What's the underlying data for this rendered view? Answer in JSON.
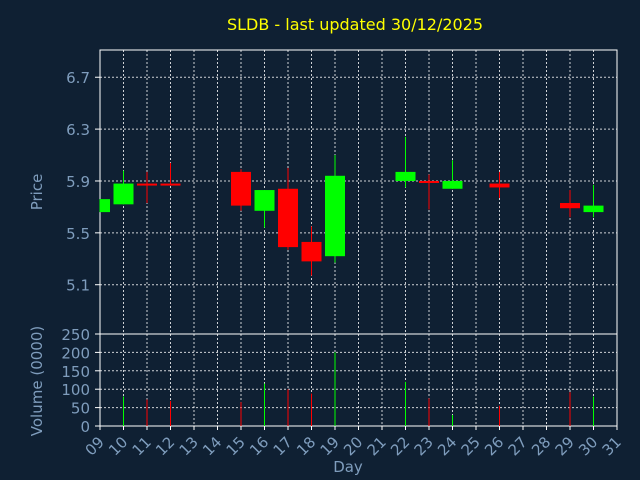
{
  "chart_data": {
    "type": "candlestick",
    "title": "SLDB - last updated 30/12/2025",
    "xlabel": "Day",
    "ylabel_price": "Price",
    "ylabel_volume": "Volume (0000)",
    "x_ticks": [
      "09",
      "10",
      "11",
      "12",
      "13",
      "14",
      "15",
      "16",
      "17",
      "18",
      "19",
      "20",
      "21",
      "22",
      "23",
      "24",
      "25",
      "26",
      "27",
      "28",
      "29",
      "30",
      "31"
    ],
    "price_ticks": [
      "5.1",
      "5.5",
      "5.9",
      "6.3",
      "6.7"
    ],
    "price_ylim": [
      4.72,
      6.91
    ],
    "volume_ticks": [
      "0",
      "50",
      "100",
      "150",
      "200",
      "250"
    ],
    "volume_ylim": [
      0,
      250
    ],
    "grid": true,
    "candles": [
      {
        "day": 9,
        "open": 5.66,
        "close": 5.76,
        "high": 5.76,
        "low": 5.66,
        "volume": 0
      },
      {
        "day": 10,
        "open": 5.72,
        "close": 5.88,
        "high": 5.98,
        "low": 5.72,
        "volume": 80
      },
      {
        "day": 11,
        "open": 5.88,
        "close": 5.87,
        "high": 5.97,
        "low": 5.73,
        "volume": 72
      },
      {
        "day": 12,
        "open": 5.88,
        "close": 5.87,
        "high": 6.04,
        "low": 5.87,
        "volume": 68
      },
      {
        "day": 15,
        "open": 5.97,
        "close": 5.71,
        "high": 5.99,
        "low": 5.67,
        "volume": 65
      },
      {
        "day": 16,
        "open": 5.67,
        "close": 5.83,
        "high": 5.83,
        "low": 5.54,
        "volume": 115
      },
      {
        "day": 17,
        "open": 5.84,
        "close": 5.39,
        "high": 6.0,
        "low": 5.37,
        "volume": 100
      },
      {
        "day": 18,
        "open": 5.43,
        "close": 5.28,
        "high": 5.55,
        "low": 5.17,
        "volume": 88
      },
      {
        "day": 19,
        "open": 5.32,
        "close": 5.94,
        "high": 6.1,
        "low": 5.27,
        "volume": 200
      },
      {
        "day": 22,
        "open": 5.9,
        "close": 5.97,
        "high": 6.24,
        "low": 5.85,
        "volume": 120
      },
      {
        "day": 23,
        "open": 5.9,
        "close": 5.89,
        "high": 5.95,
        "low": 5.68,
        "volume": 75
      },
      {
        "day": 24,
        "open": 5.84,
        "close": 5.9,
        "high": 6.06,
        "low": 5.84,
        "volume": 30
      },
      {
        "day": 26,
        "open": 5.88,
        "close": 5.85,
        "high": 5.97,
        "low": 5.77,
        "volume": 55
      },
      {
        "day": 29,
        "open": 5.73,
        "close": 5.69,
        "high": 5.83,
        "low": 5.62,
        "volume": 92
      },
      {
        "day": 30,
        "open": 5.66,
        "close": 5.71,
        "high": 5.87,
        "low": 5.62,
        "volume": 80
      }
    ],
    "colors": {
      "background": "#0f2033",
      "axis": "#ffffff",
      "grid": "#ffffff",
      "title": "#ffff00",
      "labels": "#7f9dbd",
      "up": "#00ff00",
      "down": "#ff0000"
    }
  }
}
